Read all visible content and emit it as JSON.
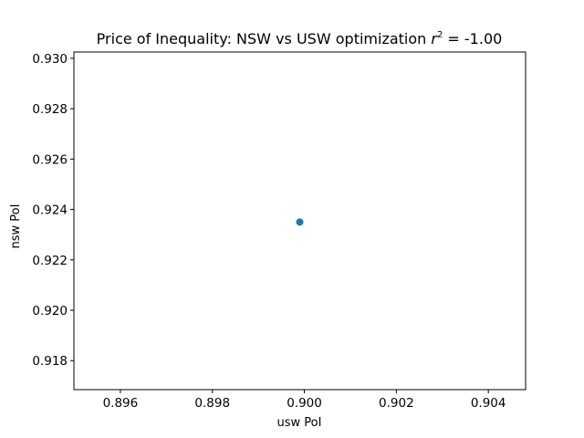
{
  "chart_data": {
    "type": "scatter",
    "title_main": "Price of Inequality: NSW vs USW optimization ",
    "title_var": "r",
    "title_sup": "2",
    "title_rest": " = -1.00",
    "xlabel": "usw PoI",
    "ylabel": "nsw PoI",
    "xlim": [
      0.89499,
      0.90481
    ],
    "ylim": [
      0.91685,
      0.93025
    ],
    "xticks": [
      "0.896",
      "0.898",
      "0.900",
      "0.902",
      "0.904"
    ],
    "xtick_values": [
      0.896,
      0.898,
      0.9,
      0.902,
      0.904
    ],
    "yticks": [
      "0.918",
      "0.920",
      "0.922",
      "0.924",
      "0.926",
      "0.928",
      "0.930"
    ],
    "ytick_values": [
      0.918,
      0.92,
      0.922,
      0.924,
      0.926,
      0.928,
      0.93
    ],
    "grid": false,
    "color": "#1f77b4",
    "points": [
      {
        "x": 0.8999,
        "y": 0.9235
      }
    ]
  }
}
